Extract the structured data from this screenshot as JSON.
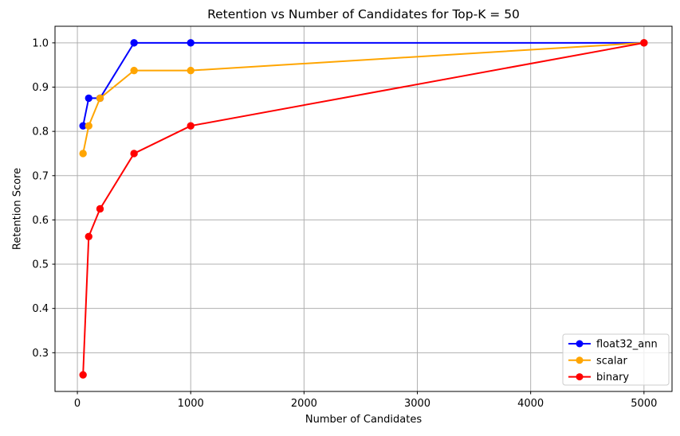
{
  "chart_data": {
    "type": "line",
    "title": "Retention vs Number of Candidates for Top-K = 50",
    "xlabel": "Number of Candidates",
    "ylabel": "Retention Score",
    "x": [
      50,
      100,
      200,
      500,
      1000,
      5000
    ],
    "series": [
      {
        "name": "float32_ann",
        "color": "#0000ff",
        "values": [
          0.8125,
          0.875,
          0.875,
          1.0,
          1.0,
          1.0
        ]
      },
      {
        "name": "scalar",
        "color": "#ffa500",
        "values": [
          0.75,
          0.8125,
          0.875,
          0.9375,
          0.9375,
          1.0
        ]
      },
      {
        "name": "binary",
        "color": "#ff0000",
        "values": [
          0.25,
          0.5625,
          0.625,
          0.75,
          0.8125,
          1.0
        ]
      }
    ],
    "xlim": [
      -197.5,
      5247.5
    ],
    "ylim": [
      0.2125,
      1.0375
    ],
    "xticks": [
      0,
      1000,
      2000,
      3000,
      4000,
      5000
    ],
    "xtick_labels": [
      "0",
      "1000",
      "2000",
      "3000",
      "4000",
      "5000"
    ],
    "yticks": [
      0.3,
      0.4,
      0.5,
      0.6,
      0.7,
      0.8,
      0.9,
      1.0
    ],
    "ytick_labels": [
      "0.3",
      "0.4",
      "0.5",
      "0.6",
      "0.7",
      "0.8",
      "0.9",
      "1.0"
    ],
    "grid": true,
    "grid_color": "#b0b0b0",
    "spine_color": "#000000",
    "background": "#ffffff",
    "legend_position": "lower right",
    "marker": "circle",
    "line_width": 2,
    "marker_radius": 4.7
  }
}
